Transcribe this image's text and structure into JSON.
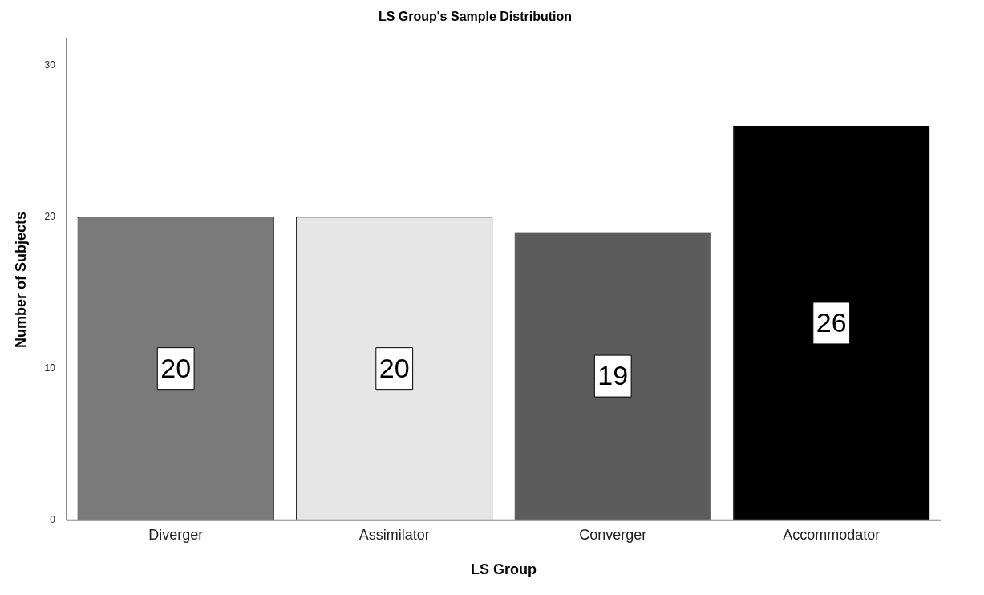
{
  "chart_data": {
    "type": "bar",
    "title": "LS Group's Sample Distribution",
    "xlabel": "LS Group",
    "ylabel": "Number of Subjects",
    "categories": [
      "Diverger",
      "Assimilator",
      "Converger",
      "Accommodator"
    ],
    "values": [
      20,
      20,
      19,
      26
    ],
    "colors": [
      "#7a7a7a",
      "#e6e6e6",
      "#5c5c5c",
      "#000000"
    ],
    "ylim": [
      0,
      31.7
    ],
    "yticks": [
      0,
      10,
      20,
      30
    ],
    "grid": false,
    "legend": false,
    "data_labels": true
  }
}
